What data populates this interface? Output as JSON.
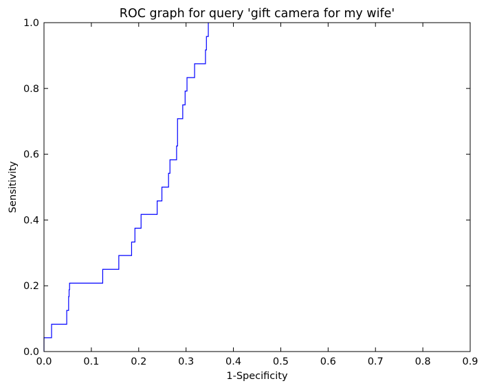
{
  "chart_data": {
    "type": "line",
    "title": "ROC graph for query 'gift camera for my wife'",
    "xlabel": "1-Specificity",
    "ylabel": "Sensitivity",
    "xlim": [
      0.0,
      0.9
    ],
    "ylim": [
      0.0,
      1.0
    ],
    "xticks": [
      "0.0",
      "0.1",
      "0.2",
      "0.3",
      "0.4",
      "0.5",
      "0.6",
      "0.7",
      "0.8",
      "0.9"
    ],
    "yticks": [
      "0.0",
      "0.2",
      "0.4",
      "0.6",
      "0.8",
      "1.0"
    ],
    "grid": false,
    "series": [
      {
        "color": "#0000ff",
        "step": true,
        "x": [
          0.0,
          0.0,
          0.016,
          0.016,
          0.048,
          0.048,
          0.052,
          0.052,
          0.053,
          0.053,
          0.054,
          0.054,
          0.124,
          0.124,
          0.158,
          0.158,
          0.185,
          0.185,
          0.192,
          0.192,
          0.205,
          0.205,
          0.239,
          0.239,
          0.249,
          0.249,
          0.263,
          0.263,
          0.266,
          0.266,
          0.28,
          0.28,
          0.282,
          0.282,
          0.293,
          0.293,
          0.298,
          0.298,
          0.302,
          0.302,
          0.318,
          0.318,
          0.341,
          0.341,
          0.343,
          0.343,
          0.347,
          0.347
        ],
        "y": [
          0.0,
          0.042,
          0.042,
          0.083,
          0.083,
          0.125,
          0.125,
          0.167,
          0.167,
          0.188,
          0.188,
          0.208,
          0.208,
          0.25,
          0.25,
          0.292,
          0.292,
          0.333,
          0.333,
          0.375,
          0.375,
          0.417,
          0.417,
          0.458,
          0.458,
          0.5,
          0.5,
          0.542,
          0.542,
          0.583,
          0.583,
          0.625,
          0.625,
          0.708,
          0.708,
          0.75,
          0.75,
          0.792,
          0.792,
          0.833,
          0.833,
          0.875,
          0.875,
          0.917,
          0.917,
          0.958,
          0.958,
          1.0
        ]
      }
    ]
  }
}
